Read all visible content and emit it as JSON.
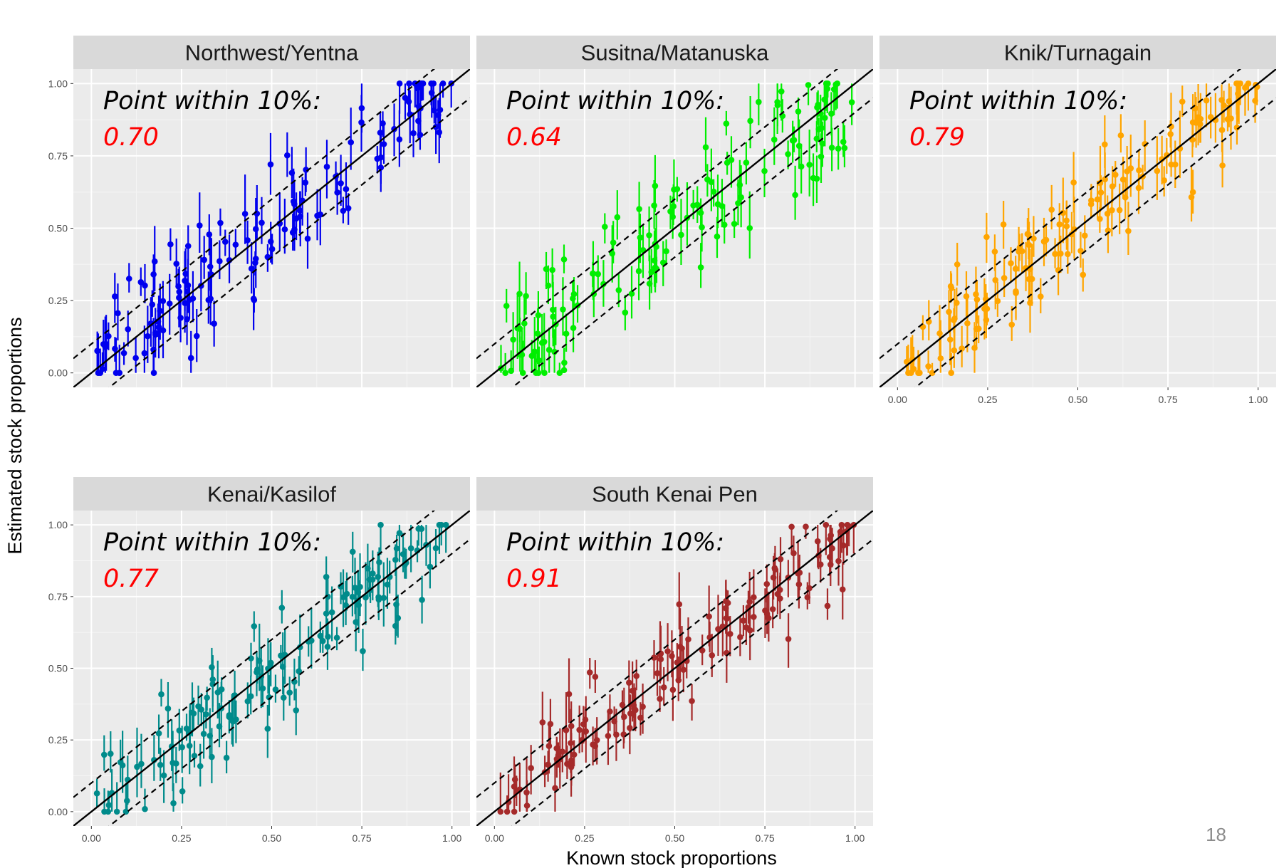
{
  "page": {
    "slide_number": "18"
  },
  "chart_data": {
    "type": "scatter",
    "xlabel": "Known stock proportions",
    "ylabel": "Estimated stock proportions",
    "xlim": [
      0,
      1
    ],
    "ylim": [
      0,
      1
    ],
    "x_ticks": [
      "0.00",
      "0.25",
      "0.50",
      "0.75",
      "1.00"
    ],
    "y_ticks": [
      "0.00",
      "0.25",
      "0.50",
      "0.75",
      "1.00"
    ],
    "grid": true,
    "reference_lines": {
      "identity": "y = x (solid)",
      "bounds": "y = x ± 0.1 (dashed)"
    },
    "error_bars": true,
    "accuracy_label": "Point within 10%:",
    "panels": [
      {
        "name": "Northwest/Yentna",
        "color": "#0000ee",
        "accuracy": "0.70",
        "points_within_10pct": 0.7,
        "x_axis_shown": false
      },
      {
        "name": "Susitna/Matanuska",
        "color": "#00ee00",
        "accuracy": "0.64",
        "points_within_10pct": 0.64,
        "x_axis_shown": false
      },
      {
        "name": "Knik/Turnagain",
        "color": "#ffa500",
        "accuracy": "0.79",
        "points_within_10pct": 0.79,
        "x_axis_shown": true
      },
      {
        "name": "Kenai/Kasilof",
        "color": "#008b8b",
        "accuracy": "0.77",
        "points_within_10pct": 0.77,
        "x_axis_shown": true
      },
      {
        "name": "South Kenai Pen",
        "color": "#a52a2a",
        "accuracy": "0.91",
        "points_within_10pct": 0.91,
        "x_axis_shown": true
      }
    ],
    "accuracy_value_color": "#ff0000"
  }
}
